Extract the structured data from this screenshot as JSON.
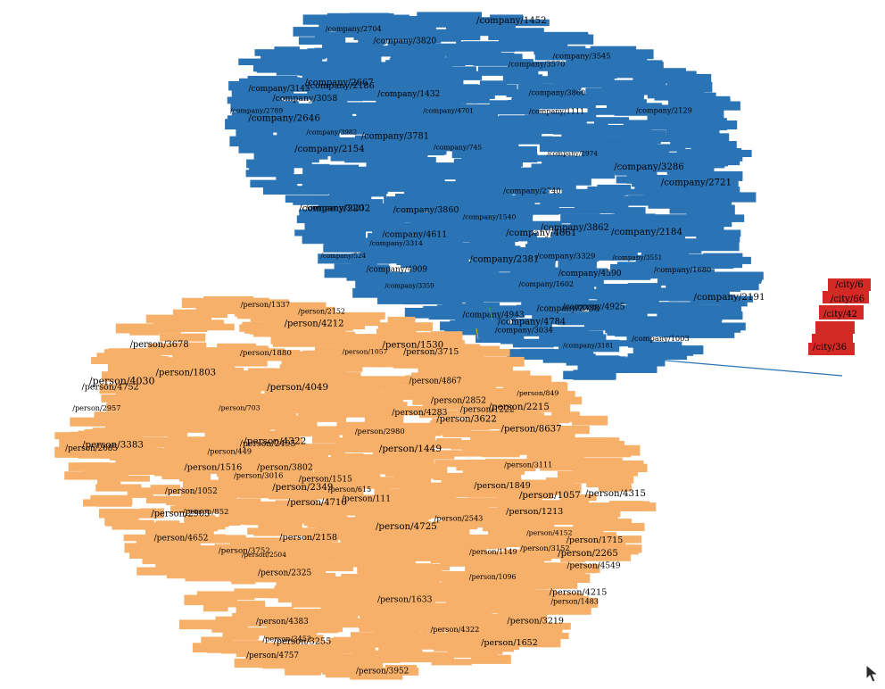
{
  "graph": {
    "colors": {
      "company": "#2a73b4",
      "person": "#f6b06a",
      "city": "#d42a26",
      "edge": "#2a73b4",
      "label": "#000000"
    },
    "clusters": {
      "company": {
        "labels": [
          "/company/2721",
          "/company/1111",
          "/company/3034",
          "/company/2202",
          "/company/3820",
          "/company/1602",
          "/company/3145",
          "/company/3286",
          "/company/3781",
          "/company/2154",
          "/company/2186",
          "/company/524",
          "/company/3982",
          "/company/2740",
          "/company/2704",
          "/company/4590",
          "/company/2667",
          "/company/3058",
          "/company/745",
          "/company/4611",
          "/company/2191",
          "/company/3570",
          "/company/4784",
          "/company/2789",
          "/company/4661",
          "/company/2338",
          "/company/3359",
          "/company/3181",
          "/company/1680",
          "/company/3021",
          "/company/3860",
          "/company/2184",
          "/company/4909",
          "/company/2381",
          "/company/3551",
          "/company/1540",
          "/company/4925",
          "/company/2974",
          "/company/3545",
          "/company/1432",
          "/company/1003",
          "/company/4943",
          "/company/2646",
          "/company/1452",
          "/company/3860",
          "/company/2129",
          "/company/4701",
          "/company/3862",
          "/company/3314",
          "/company/3329"
        ]
      },
      "person": {
        "labels": [
          "/person/2495",
          "/person/2957",
          "/person/3383",
          "/person/4757",
          "/person/4212",
          "/person/2158",
          "/person/2504",
          "/person/1633",
          "/person/1213",
          "/person/1715",
          "/person/4215",
          "/person/4030",
          "/person/4322",
          "/person/4752",
          "/person/1652",
          "/person/4152",
          "/person/3952",
          "/person/3219",
          "/person/4315",
          "/person/3802",
          "/person/1222",
          "/person/3715",
          "/person/3622",
          "/person/4716",
          "/person/3678",
          "/person/852",
          "/person/3111",
          "/person/703",
          "/person/2215",
          "/person/1449",
          "/person/3452",
          "/person/1880",
          "/person/3152",
          "/person/1803",
          "/person/1515",
          "/person/2852",
          "/person/3752",
          "/person/1052",
          "/person/2152",
          "/person/3255",
          "/person/4652",
          "/person/1530",
          "/person/1057",
          "/person/615",
          "/person/111",
          "/person/449",
          "/person/849",
          "/person/4549",
          "/person/2349",
          "/person/1057",
          "/person/8637",
          "/person/4383",
          "/person/1483",
          "/person/2543",
          "/person/2265",
          "/person/1337",
          "/person/2685",
          "/person/1849",
          "/person/1149",
          "/person/4283",
          "/person/4049",
          "/person/2325",
          "/person/4725",
          "/person/1096",
          "/person/3016",
          "/person/4322",
          "/person/1516",
          "/person/2905",
          "/person/4867",
          "/person/2980"
        ]
      },
      "city": {
        "labels": [
          "/city/6",
          "/city/66",
          "/city/42",
          "/city/36"
        ]
      }
    },
    "cursor_icon": "pointer-arrow-icon"
  }
}
